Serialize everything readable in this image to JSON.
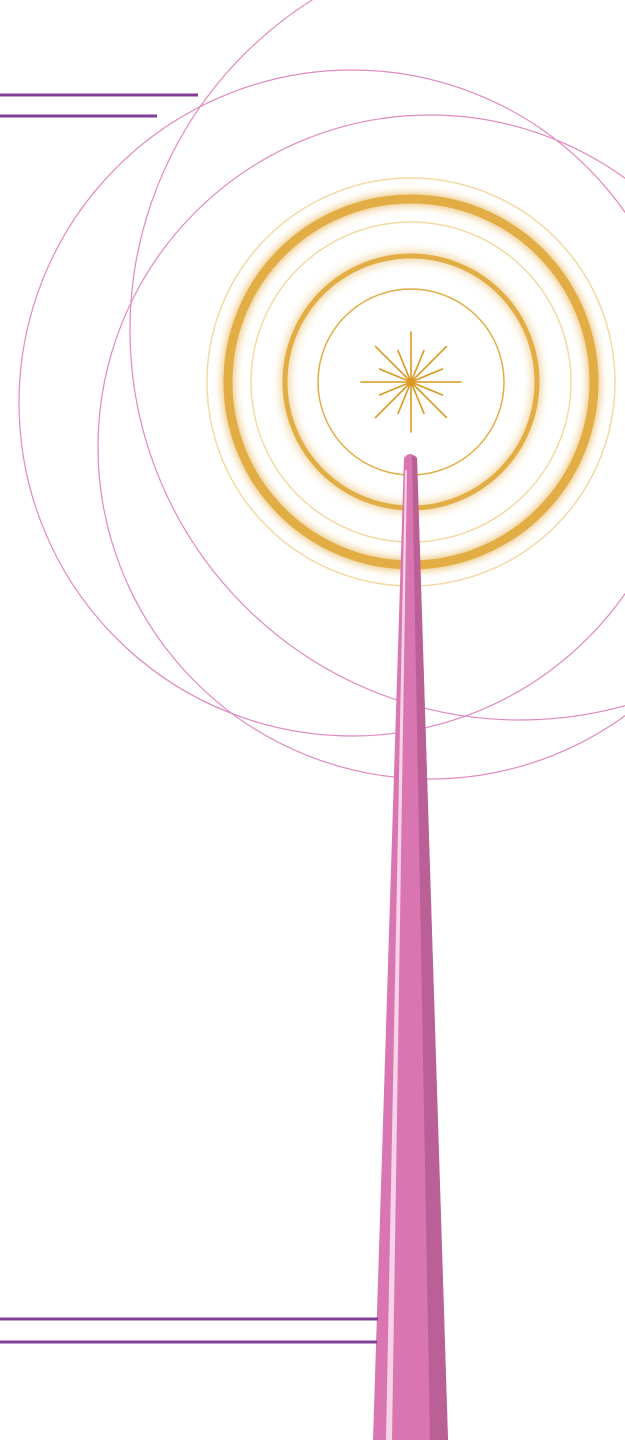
{
  "illustration": {
    "subject": "radio-antenna-tower",
    "colors": {
      "background": "#ffffff",
      "accent_line": "#7f3f98",
      "orbit_line": "#e08ac0",
      "wave_ring": "#e3ad45",
      "wave_glow": "#f3d9a2",
      "spark": "#d9981f",
      "tower_body": "#d975b0",
      "tower_shadow": "#bb5f97",
      "tower_highlight": "#f6d3e8"
    }
  }
}
